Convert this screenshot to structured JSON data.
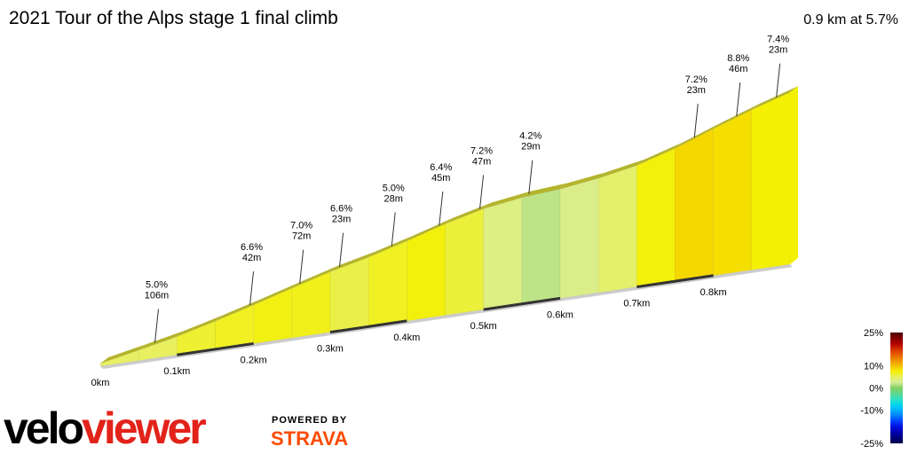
{
  "chart_data": {
    "type": "profile",
    "title": "2021 Tour of the Alps stage 1 final climb",
    "subtitle": "0.9 km at 5.7%",
    "xlim": [
      0,
      0.9
    ],
    "xticks": [
      {
        "value": 0,
        "label": "0km"
      },
      {
        "value": 0.1,
        "label": "0.1km"
      },
      {
        "value": 0.2,
        "label": "0.2km"
      },
      {
        "value": 0.3,
        "label": "0.3km"
      },
      {
        "value": 0.4,
        "label": "0.4km"
      },
      {
        "value": 0.5,
        "label": "0.5km"
      },
      {
        "value": 0.6,
        "label": "0.6km"
      },
      {
        "value": 0.7,
        "label": "0.7km"
      },
      {
        "value": 0.8,
        "label": "0.8km"
      }
    ],
    "profile": {
      "bins": [
        0,
        0.05,
        0.1,
        0.15,
        0.2,
        0.25,
        0.3,
        0.35,
        0.4,
        0.45,
        0.5,
        0.55,
        0.6,
        0.65,
        0.7,
        0.75,
        0.8,
        0.85,
        0.9
      ],
      "gradients": [
        4.8,
        5.0,
        6.2,
        6.6,
        7.0,
        6.8,
        5.6,
        6.6,
        7.2,
        6.0,
        3.5,
        1.8,
        3.2,
        4.5,
        7.2,
        8.8,
        8.4,
        7.4
      ]
    },
    "annotations": {
      "x": [
        0.066,
        0.19,
        0.255,
        0.307,
        0.375,
        0.437,
        0.49,
        0.554,
        0.77,
        0.825,
        0.877
      ],
      "gradients": [
        5.0,
        6.6,
        7.0,
        6.6,
        5.0,
        6.4,
        7.2,
        4.2,
        7.2,
        8.8,
        7.4
      ],
      "gradient_labels": [
        "5.0%",
        "6.6%",
        "7.0%",
        "6.6%",
        "5.0%",
        "6.4%",
        "7.2%",
        "4.2%",
        "7.2%",
        "8.8%",
        "7.4%"
      ],
      "lengths": [
        106,
        42,
        72,
        23,
        28,
        45,
        47,
        29,
        23,
        46,
        23
      ],
      "length_labels": [
        "106m",
        "42m",
        "72m",
        "23m",
        "28m",
        "45m",
        "47m",
        "29m",
        "23m",
        "46m",
        "23m"
      ]
    },
    "color_scale": {
      "lim": [
        -25,
        25
      ],
      "ticks": [
        {
          "value": 25,
          "label": "25%"
        },
        {
          "value": 10,
          "label": "10%"
        },
        {
          "value": 0,
          "label": "0%"
        },
        {
          "value": -10,
          "label": "-10%"
        },
        {
          "value": -25,
          "label": "-25%"
        }
      ],
      "colors": [
        "#00004a",
        "#00007a",
        "#0000b0",
        "#0010e0",
        "#0040ff",
        "#0080ff",
        "#00b0ff",
        "#00d8f0",
        "#30e0c0",
        "#60d890",
        "#80d060",
        "#d6ec98",
        "#e8f060",
        "#f5f000",
        "#f5c000",
        "#f09000",
        "#e86000",
        "#d83000",
        "#b00000",
        "#800000",
        "#4a0000"
      ]
    },
    "ridge_color": "#b4b42e",
    "base_color": "#cccccc",
    "band_color": "#333333"
  },
  "branding": {
    "logo_velo": "velo",
    "logo_viewer": "viewer",
    "powered_by": "POWERED BY",
    "strava": "STRAVA"
  }
}
